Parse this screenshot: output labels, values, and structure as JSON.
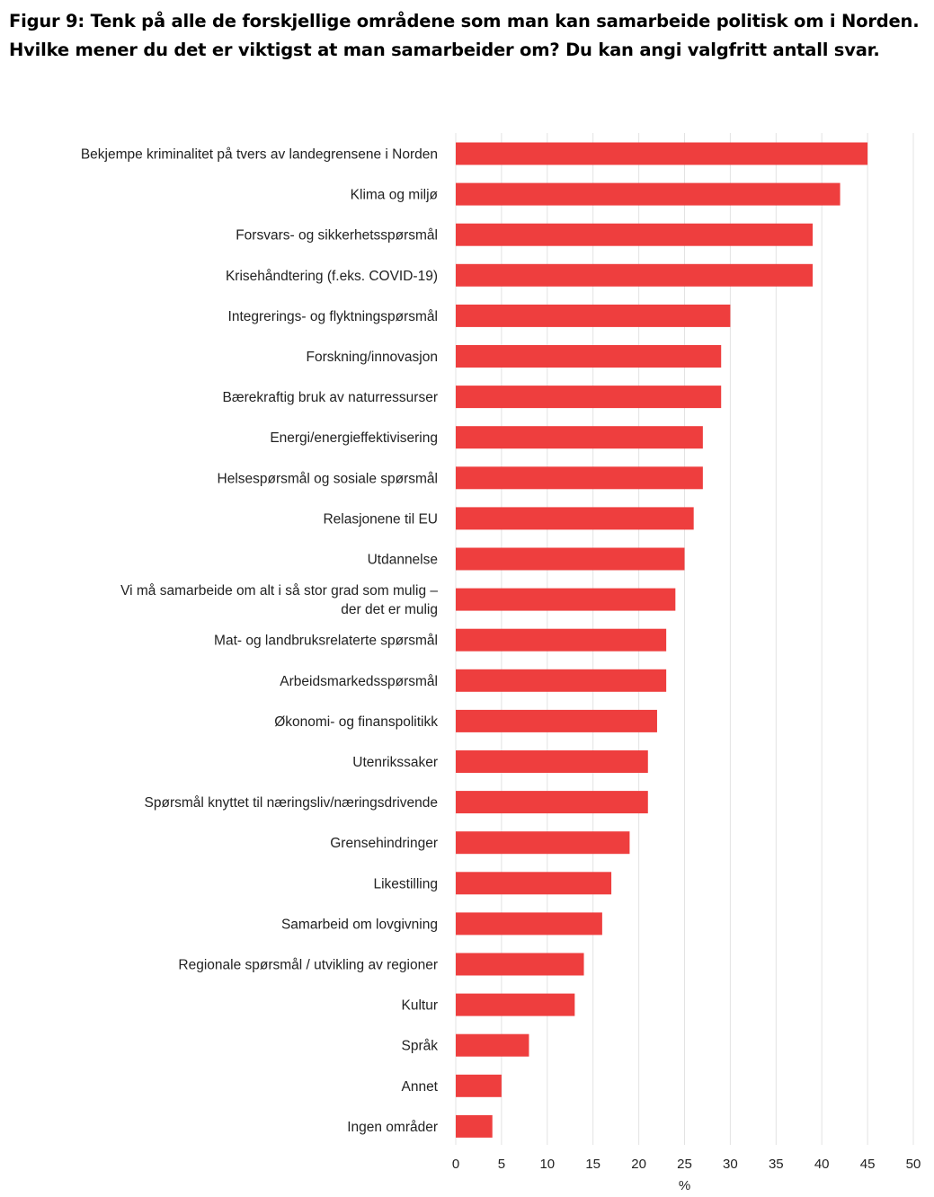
{
  "chart_data": {
    "type": "bar",
    "orientation": "horizontal",
    "title": "Figur 9: Tenk på alle de forskjellige områdene som man kan samarbeide politisk om i Norden. Hvilke mener du det er viktigst at man samarbeider om? Du kan angi valgfritt antall svar.",
    "xlabel": "%",
    "ylabel": "",
    "xlim": [
      0,
      50
    ],
    "xticks": [
      "0",
      "5",
      "10",
      "15",
      "20",
      "25",
      "30",
      "35",
      "40",
      "45",
      "50"
    ],
    "grid": "vertical",
    "bar_color": "#ee3e3e",
    "categories": [
      [
        "Bekjempe kriminalitet på tvers av landegrensene i Norden"
      ],
      [
        "Klima og miljø"
      ],
      [
        "Forsvars- og sikkerhetsspørsmål"
      ],
      [
        "Krisehåndtering (f.eks. COVID-19)"
      ],
      [
        "Integrerings- og flyktningspørsmål"
      ],
      [
        "Forskning/innovasjon"
      ],
      [
        "Bærekraftig bruk av naturressurser"
      ],
      [
        "Energi/energieffektivisering"
      ],
      [
        "Helsespørsmål og sosiale spørsmål"
      ],
      [
        "Relasjonene til EU"
      ],
      [
        "Utdannelse"
      ],
      [
        "Vi må samarbeide om alt i så stor grad som mulig –",
        "der det er mulig"
      ],
      [
        "Mat- og landbruksrelaterte spørsmål"
      ],
      [
        "Arbeidsmarkedsspørsmål"
      ],
      [
        "Økonomi- og finanspolitikk"
      ],
      [
        "Utenrikssaker"
      ],
      [
        "Spørsmål knyttet til næringsliv/næringsdrivende"
      ],
      [
        "Grensehindringer"
      ],
      [
        "Likestilling"
      ],
      [
        "Samarbeid om lovgivning"
      ],
      [
        "Regionale spørsmål / utvikling av regioner"
      ],
      [
        "Kultur"
      ],
      [
        "Språk"
      ],
      [
        "Annet"
      ],
      [
        "Ingen områder"
      ]
    ],
    "values": [
      45,
      42,
      39,
      39,
      30,
      29,
      29,
      27,
      27,
      26,
      25,
      24,
      23,
      23,
      22,
      21,
      21,
      19,
      17,
      16,
      14,
      13,
      8,
      5,
      4
    ]
  }
}
